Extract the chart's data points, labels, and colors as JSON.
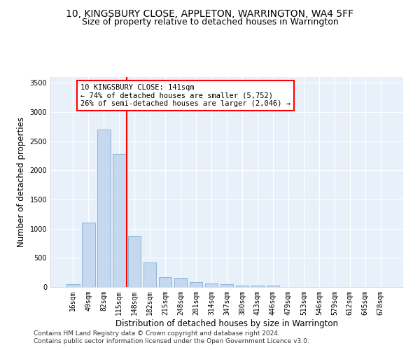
{
  "title1": "10, KINGSBURY CLOSE, APPLETON, WARRINGTON, WA4 5FF",
  "title2": "Size of property relative to detached houses in Warrington",
  "xlabel": "Distribution of detached houses by size in Warrington",
  "ylabel": "Number of detached properties",
  "categories": [
    "16sqm",
    "49sqm",
    "82sqm",
    "115sqm",
    "148sqm",
    "182sqm",
    "215sqm",
    "248sqm",
    "281sqm",
    "314sqm",
    "347sqm",
    "380sqm",
    "413sqm",
    "446sqm",
    "479sqm",
    "513sqm",
    "546sqm",
    "579sqm",
    "612sqm",
    "645sqm",
    "678sqm"
  ],
  "values": [
    50,
    1100,
    2700,
    2280,
    880,
    415,
    170,
    160,
    90,
    60,
    50,
    30,
    25,
    20,
    5,
    3,
    2,
    1,
    1,
    1,
    1
  ],
  "bar_color": "#c5d8f0",
  "bar_edge_color": "#7aafd4",
  "vline_index": 4,
  "vline_color": "red",
  "annotation_text": "10 KINGSBURY CLOSE: 141sqm\n← 74% of detached houses are smaller (5,752)\n26% of semi-detached houses are larger (2,046) →",
  "annotation_box_color": "white",
  "annotation_box_edge_color": "red",
  "ylim": [
    0,
    3600
  ],
  "yticks": [
    0,
    500,
    1000,
    1500,
    2000,
    2500,
    3000,
    3500
  ],
  "footer1": "Contains HM Land Registry data © Crown copyright and database right 2024.",
  "footer2": "Contains public sector information licensed under the Open Government Licence v3.0.",
  "bg_color": "#e8f0fa",
  "grid_color": "#ffffff",
  "title1_fontsize": 10,
  "title2_fontsize": 9,
  "tick_fontsize": 7,
  "ylabel_fontsize": 8.5,
  "xlabel_fontsize": 8.5,
  "footer_fontsize": 6.5
}
